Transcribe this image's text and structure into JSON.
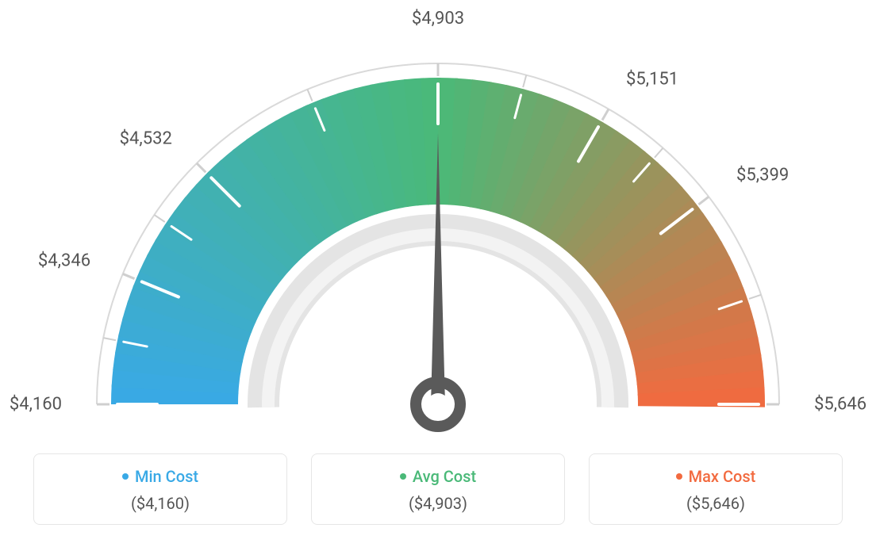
{
  "gauge": {
    "type": "gauge",
    "min_value": 4160,
    "max_value": 5646,
    "avg_value": 4903,
    "needle_value": 4903,
    "start_color": "#39a9e6",
    "mid_color": "#4ab978",
    "end_color": "#f26a3f",
    "tick_color_outer": "#cfcfcf",
    "tick_color_inner": "#ffffff",
    "outer_ring_stroke": "#d9d9d9",
    "inner_ring_fill": "#e4e4e4",
    "inner_ring_highlight": "#f3f3f3",
    "needle_color": "#5a5a5a",
    "background_color": "#ffffff",
    "label_color": "#555555",
    "label_fontsize": 22,
    "ticks": [
      {
        "label": "$4,160",
        "angle": 180
      },
      {
        "label": "$4,346",
        "angle": 157.5
      },
      {
        "label": "$4,532",
        "angle": 135
      },
      {
        "label": "$4,903",
        "angle": 90
      },
      {
        "label": "$5,151",
        "angle": 60
      },
      {
        "label": "$5,399",
        "angle": 37.5
      },
      {
        "label": "$5,646",
        "angle": 0
      }
    ],
    "minor_tick_count_between": 1
  },
  "legend": {
    "min": {
      "title": "Min Cost",
      "value": "($4,160)",
      "color": "#39a9e6"
    },
    "avg": {
      "title": "Avg Cost",
      "value": "($4,903)",
      "color": "#4ab978"
    },
    "max": {
      "title": "Max Cost",
      "value": "($5,646)",
      "color": "#f26a3f"
    },
    "card_border": "#e6e6e6",
    "value_color": "#555555"
  }
}
